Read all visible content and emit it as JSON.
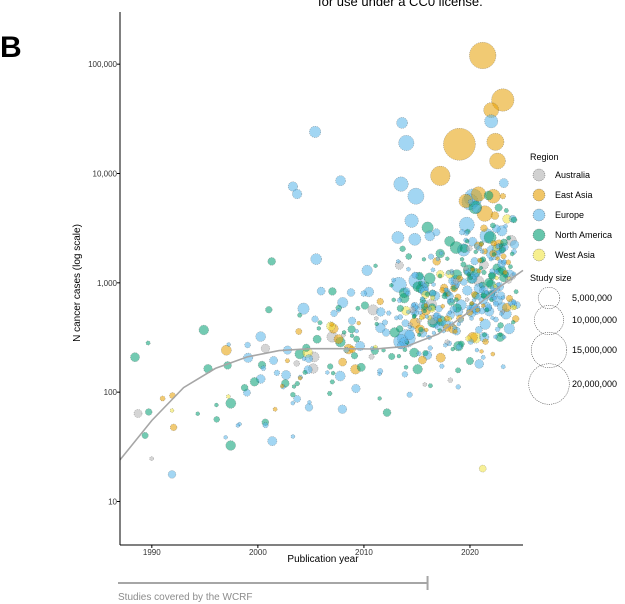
{
  "panel_label": "B",
  "top_caption": "for use under a CC0 license.",
  "wcrf_label": "Studies covered by the WCRF",
  "wcrf_range": [
    1987,
    2016
  ],
  "colors": {
    "Australia": "#b3b3b3",
    "East Asia": "#e69f00",
    "Europe": "#56b4e9",
    "North America": "#009e73",
    "West Asia": "#f0e442",
    "trend": "#a6a6a6",
    "axis": "#000000",
    "wcrf": "#a6a6a6"
  },
  "chart_data": {
    "type": "scatter",
    "xlabel": "Publication year",
    "ylabel": "N cancer cases (log scale)",
    "xlim": [
      1987,
      2025
    ],
    "ylim": [
      4,
      300000
    ],
    "y_scale": "log",
    "x_ticks": [
      1990,
      2000,
      2010,
      2020
    ],
    "x_tick_labels": [
      "1990",
      "2000",
      "2010",
      "2020"
    ],
    "y_ticks": [
      10,
      100,
      1000,
      10000,
      100000
    ],
    "y_tick_labels": [
      "10",
      "100",
      "1,000",
      "10,000",
      "100,000"
    ],
    "legend": {
      "region_title": "Region",
      "regions": [
        "Australia",
        "East Asia",
        "Europe",
        "North America",
        "West Asia"
      ],
      "size_title": "Study size",
      "sizes": [
        5000000,
        10000000,
        15000000,
        20000000
      ],
      "size_labels": [
        "5,000,000",
        "10,000,000",
        "15,000,000",
        "20,000,000"
      ],
      "placement": "right"
    },
    "trend_line": [
      [
        1987,
        24
      ],
      [
        1990,
        55
      ],
      [
        1993,
        110
      ],
      [
        1996,
        165
      ],
      [
        1999,
        210
      ],
      [
        2002,
        240
      ],
      [
        2005,
        250
      ],
      [
        2008,
        250
      ],
      [
        2011,
        248
      ],
      [
        2014,
        262
      ],
      [
        2017,
        340
      ],
      [
        2020,
        550
      ],
      [
        2023,
        950
      ],
      [
        2025,
        1300
      ]
    ],
    "point_count": 500,
    "seed": 7,
    "region_weights": {
      "Australia": 0.06,
      "East Asia": 0.16,
      "Europe": 0.44,
      "North America": 0.3,
      "West Asia": 0.04
    },
    "highlight_points": [
      {
        "x": 2021.2,
        "y": 120000,
        "size": 8000000,
        "region": "East Asia"
      },
      {
        "x": 2023.1,
        "y": 47000,
        "size": 5500000,
        "region": "East Asia"
      },
      {
        "x": 2022.0,
        "y": 38000,
        "size": 2200000,
        "region": "East Asia"
      },
      {
        "x": 2019.0,
        "y": 18500,
        "size": 12000000,
        "region": "East Asia"
      },
      {
        "x": 2022.4,
        "y": 19500,
        "size": 3000000,
        "region": "East Asia"
      },
      {
        "x": 2022.6,
        "y": 13000,
        "size": 2500000,
        "region": "East Asia"
      },
      {
        "x": 2017.2,
        "y": 9500,
        "size": 4000000,
        "region": "East Asia"
      },
      {
        "x": 2020.8,
        "y": 6500,
        "size": 2000000,
        "region": "East Asia"
      },
      {
        "x": 2021.4,
        "y": 4300,
        "size": 2400000,
        "region": "East Asia"
      },
      {
        "x": 2022.2,
        "y": 6200,
        "size": 1800000,
        "region": "East Asia"
      },
      {
        "x": 2019.6,
        "y": 5600,
        "size": 1700000,
        "region": "East Asia"
      },
      {
        "x": 2005.4,
        "y": 24000,
        "size": 1100000,
        "region": "Europe"
      },
      {
        "x": 2014.0,
        "y": 19000,
        "size": 2300000,
        "region": "Europe"
      },
      {
        "x": 2013.6,
        "y": 29000,
        "size": 1000000,
        "region": "Europe"
      },
      {
        "x": 2022.0,
        "y": 30000,
        "size": 1600000,
        "region": "Europe"
      },
      {
        "x": 2003.3,
        "y": 7600,
        "size": 700000,
        "region": "Europe"
      },
      {
        "x": 2003.7,
        "y": 6500,
        "size": 700000,
        "region": "Europe"
      },
      {
        "x": 2007.8,
        "y": 8600,
        "size": 800000,
        "region": "Europe"
      },
      {
        "x": 2013.5,
        "y": 8000,
        "size": 2000000,
        "region": "Europe"
      },
      {
        "x": 2014.9,
        "y": 6200,
        "size": 2600000,
        "region": "Europe"
      },
      {
        "x": 2020.3,
        "y": 6000,
        "size": 3300000,
        "region": "Europe"
      },
      {
        "x": 2020.0,
        "y": 5500,
        "size": 2600000,
        "region": "Europe"
      },
      {
        "x": 2019.7,
        "y": 3400,
        "size": 2200000,
        "region": "Europe"
      },
      {
        "x": 2014.5,
        "y": 3700,
        "size": 1700000,
        "region": "Europe"
      },
      {
        "x": 2013.2,
        "y": 2600,
        "size": 1300000,
        "region": "Europe"
      },
      {
        "x": 2014.8,
        "y": 2500,
        "size": 1300000,
        "region": "Europe"
      },
      {
        "x": 2021.6,
        "y": 2700,
        "size": 1800000,
        "region": "Europe"
      },
      {
        "x": 2019.4,
        "y": 2000,
        "size": 1400000,
        "region": "Europe"
      },
      {
        "x": 2022.2,
        "y": 1900,
        "size": 2200000,
        "region": "Europe"
      },
      {
        "x": 2013.3,
        "y": 960,
        "size": 2200000,
        "region": "Europe"
      },
      {
        "x": 2015.0,
        "y": 1050,
        "size": 2600000,
        "region": "Europe"
      },
      {
        "x": 2014.0,
        "y": 310,
        "size": 3300000,
        "region": "Europe"
      },
      {
        "x": 2013.5,
        "y": 290,
        "size": 2100000,
        "region": "Europe"
      },
      {
        "x": 2005.5,
        "y": 1650,
        "size": 1000000,
        "region": "Europe"
      },
      {
        "x": 2004.3,
        "y": 580,
        "size": 1100000,
        "region": "Europe"
      },
      {
        "x": 2008.0,
        "y": 660,
        "size": 900000,
        "region": "Europe"
      },
      {
        "x": 2010.3,
        "y": 1300,
        "size": 900000,
        "region": "Europe"
      },
      {
        "x": 2001.3,
        "y": 1570,
        "size": 400000,
        "region": "North America"
      },
      {
        "x": 2020.5,
        "y": 4900,
        "size": 1500000,
        "region": "North America"
      },
      {
        "x": 2021.9,
        "y": 2600,
        "size": 1300000,
        "region": "North America"
      },
      {
        "x": 2018.7,
        "y": 2100,
        "size": 1300000,
        "region": "North America"
      },
      {
        "x": 2019.9,
        "y": 1300,
        "size": 1100000,
        "region": "North America"
      },
      {
        "x": 2016.0,
        "y": 3200,
        "size": 1100000,
        "region": "North America"
      },
      {
        "x": 2016.2,
        "y": 1100,
        "size": 1000000,
        "region": "North America"
      },
      {
        "x": 2007.0,
        "y": 320,
        "size": 900000,
        "region": "Australia"
      },
      {
        "x": 2005.3,
        "y": 210,
        "size": 800000,
        "region": "Australia"
      },
      {
        "x": 2021.2,
        "y": 20,
        "size": 300000,
        "region": "West Asia"
      },
      {
        "x": 2017.2,
        "y": 1200,
        "size": 400000,
        "region": "West Asia"
      }
    ]
  }
}
